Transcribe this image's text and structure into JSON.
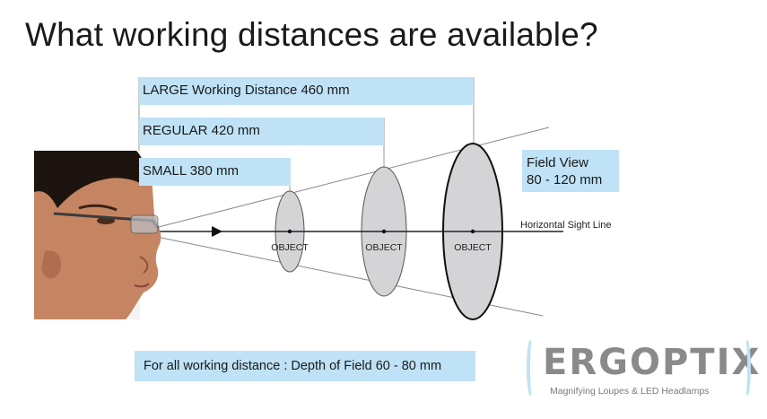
{
  "title": "What working distances are available?",
  "distances": {
    "large": "LARGE  Working Distance  460 mm",
    "regular": "REGULAR  420 mm",
    "small": "SMALL  380 mm"
  },
  "field_view": {
    "line1": "Field View",
    "line2": "80 - 120 mm"
  },
  "sight_line_label": "Horizontal Sight Line",
  "objects": [
    "OBJECT",
    "OBJECT",
    "OBJECT"
  ],
  "depth_of_field": "For all working distance : Depth of Field 60 - 80 mm",
  "logo": {
    "name": "ERGOPTIX",
    "tagline": "Magnifying Loupes & LED Headlamps"
  },
  "colors": {
    "label_fill": "#bfe2f6",
    "lens_fill": "#d4d4d6",
    "line": "#222222"
  }
}
